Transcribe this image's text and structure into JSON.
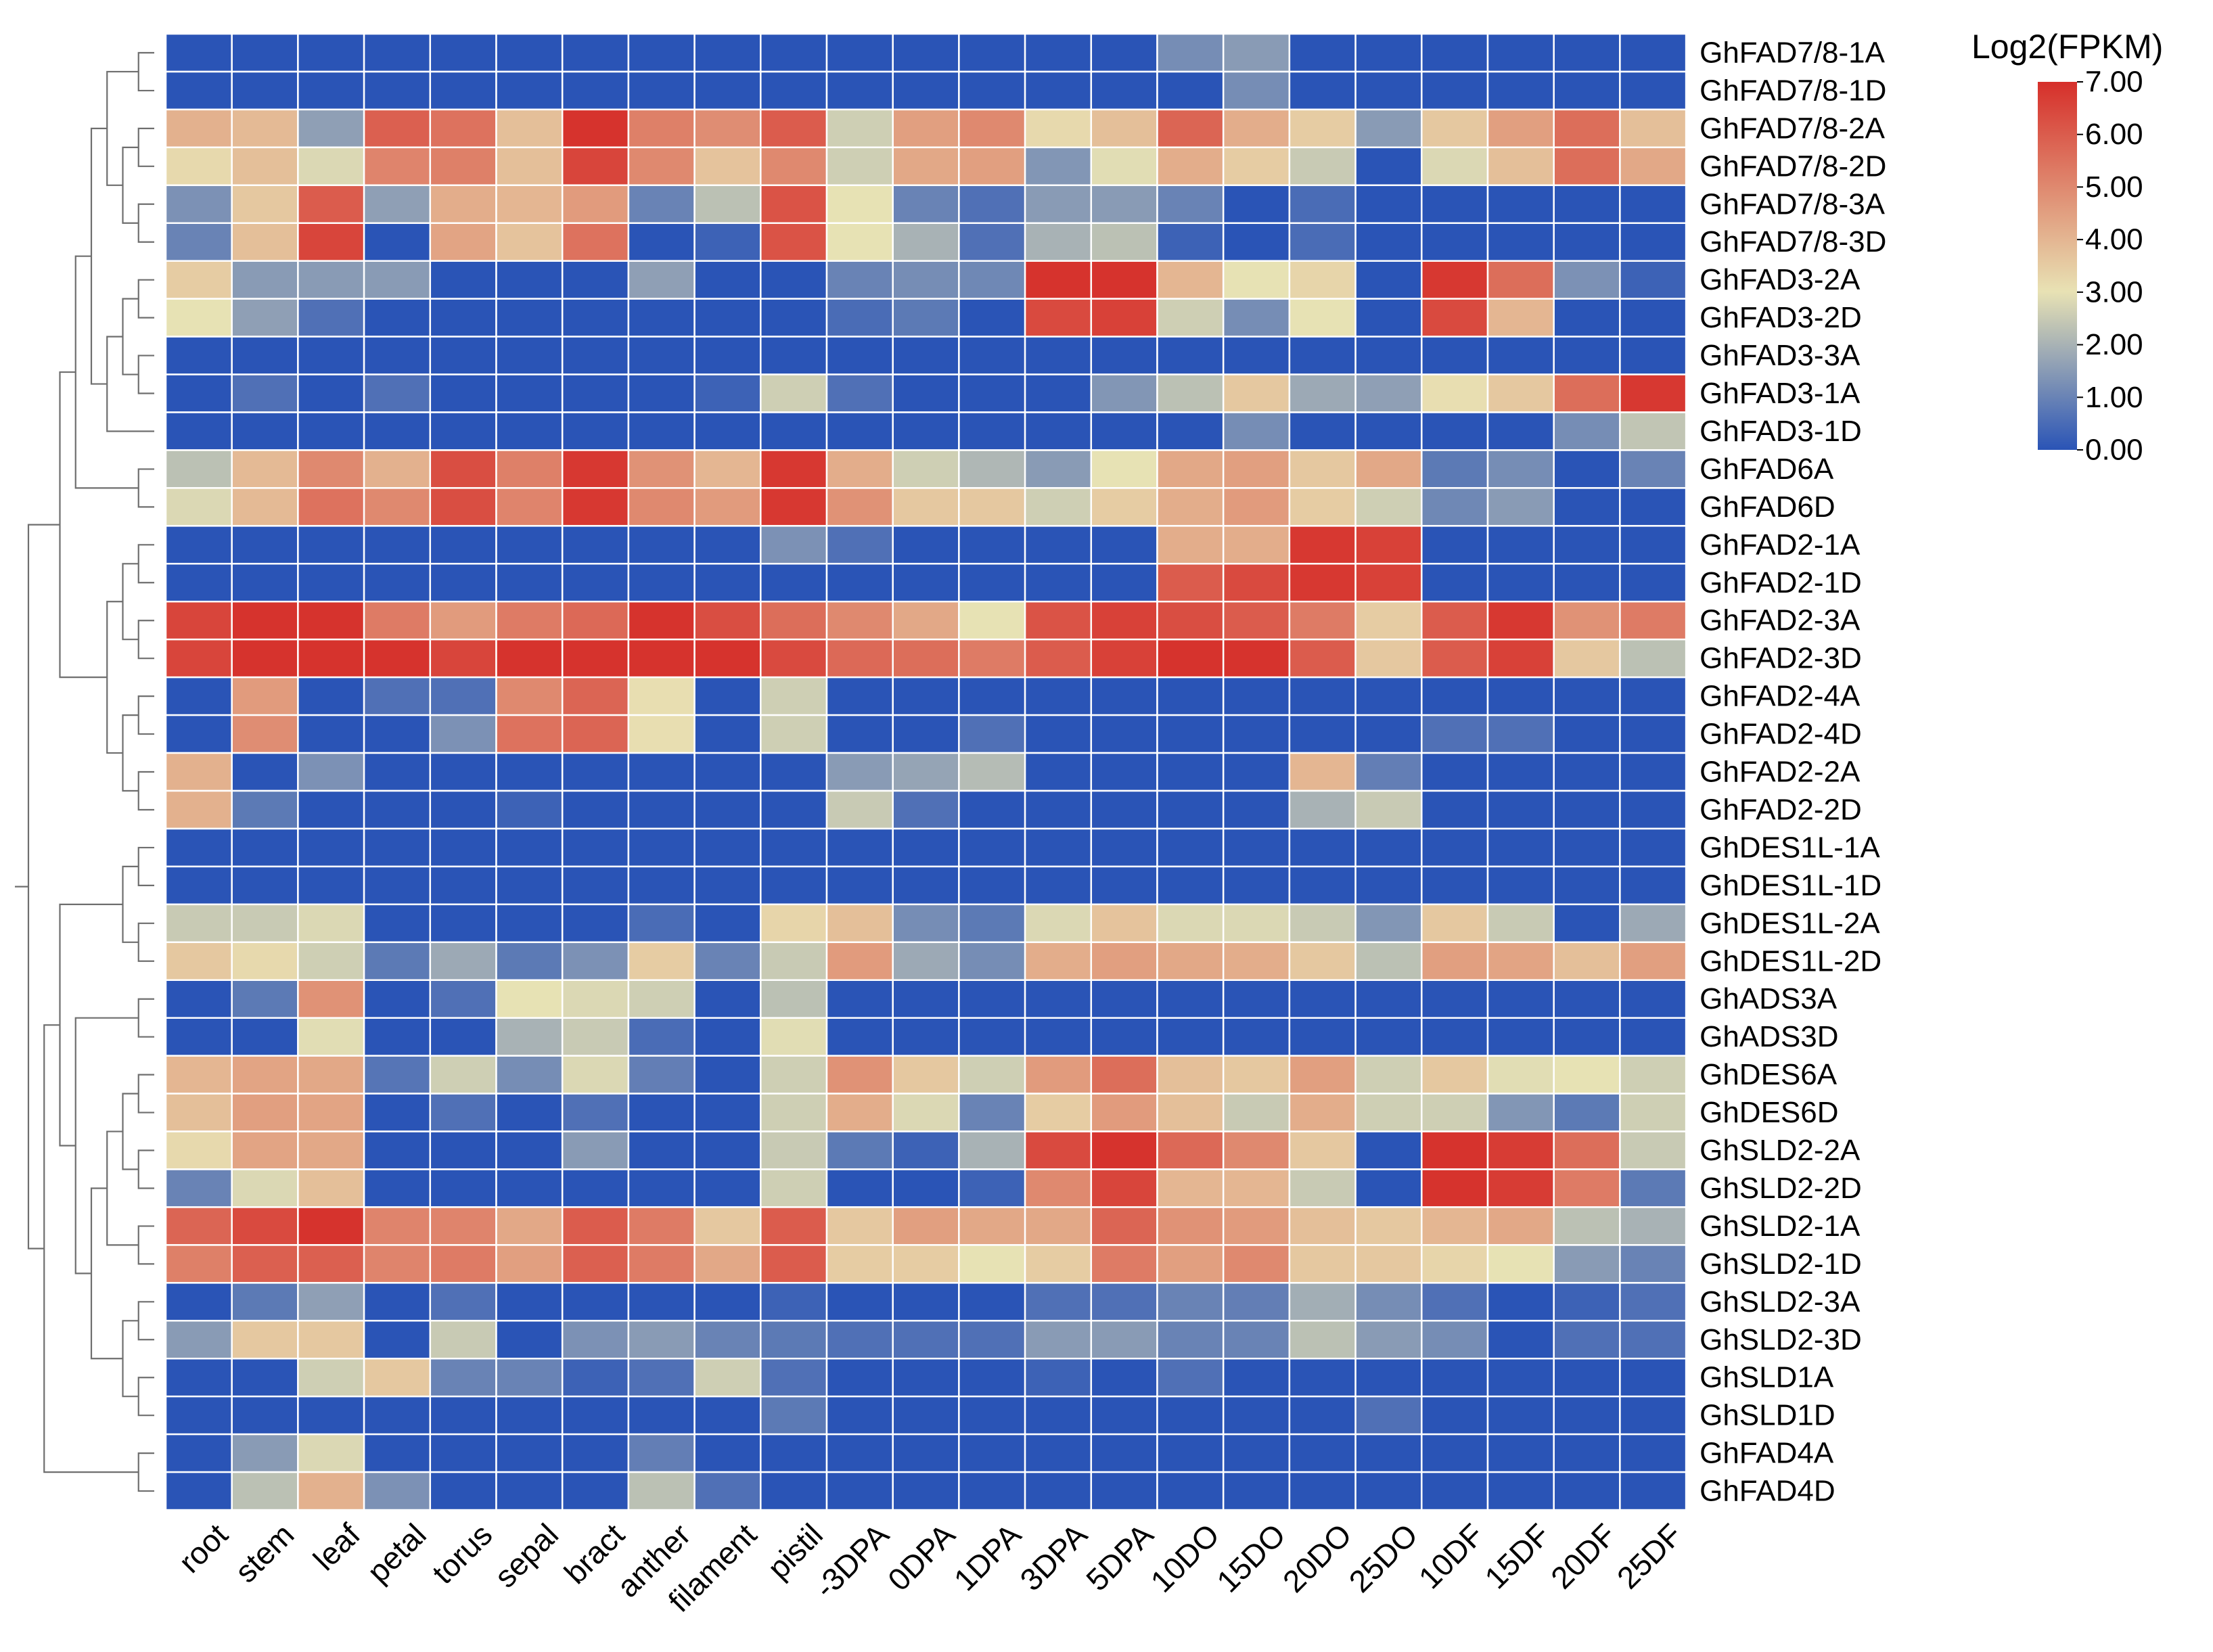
{
  "chart_data": {
    "type": "heatmap",
    "title": "",
    "legend": {
      "title": "Log2(FPKM)",
      "ticks": [
        "7.00",
        "6.00",
        "5.00",
        "4.00",
        "3.00",
        "2.00",
        "1.00",
        "0.00"
      ],
      "range": [
        0,
        7
      ],
      "placement": "top-right",
      "colormap": [
        "#2a54b6",
        "#e8e2b4",
        "#d62f2a"
      ]
    },
    "columns": [
      "root",
      "stem",
      "leaf",
      "petal",
      "torus",
      "sepal",
      "bract",
      "anther",
      "filament",
      "pistil",
      "-3DPA",
      "0DPA",
      "1DPA",
      "3DPA",
      "5DPA",
      "10DO",
      "15DO",
      "20DO",
      "25DO",
      "10DF",
      "15DF",
      "20DF",
      "25DF"
    ],
    "rows": [
      "GhFAD7/8-1A",
      "GhFAD7/8-1D",
      "GhFAD7/8-2A",
      "GhFAD7/8-2D",
      "GhFAD7/8-3A",
      "GhFAD7/8-3D",
      "GhFAD3-2A",
      "GhFAD3-2D",
      "GhFAD3-3A",
      "GhFAD3-1A",
      "GhFAD3-1D",
      "GhFAD6A",
      "GhFAD6D",
      "GhFAD2-1A",
      "GhFAD2-1D",
      "GhFAD2-3A",
      "GhFAD2-3D",
      "GhFAD2-4A",
      "GhFAD2-4D",
      "GhFAD2-2A",
      "GhFAD2-2D",
      "GhDES1L-1A",
      "GhDES1L-1D",
      "GhDES1L-2A",
      "GhDES1L-2D",
      "GhADS3A",
      "GhADS3D",
      "GhDES6A",
      "GhDES6D",
      "GhSLD2-2A",
      "GhSLD2-2D",
      "GhSLD2-1A",
      "GhSLD2-1D",
      "GhSLD2-3A",
      "GhSLD2-3D",
      "GhSLD1A",
      "GhSLD1D",
      "GhFAD4A",
      "GhFAD4D"
    ],
    "values": [
      [
        0,
        0,
        0,
        0,
        0,
        0,
        0,
        0,
        0,
        0,
        0,
        0,
        0,
        0,
        0,
        1.2,
        1.5,
        0,
        0,
        0,
        0,
        0,
        0
      ],
      [
        0,
        0,
        0,
        0,
        0,
        0,
        0,
        0,
        0,
        0,
        0,
        0,
        0,
        0,
        0,
        0,
        1.2,
        0,
        0,
        0,
        0,
        0,
        0
      ],
      [
        4.1,
        3.9,
        1.6,
        5.9,
        5.5,
        3.8,
        6.9,
        5.2,
        4.9,
        6.0,
        2.6,
        4.5,
        5.0,
        3.2,
        3.8,
        5.8,
        4.2,
        3.5,
        1.5,
        3.6,
        4.5,
        5.6,
        3.8
      ],
      [
        3.2,
        3.8,
        2.8,
        5.1,
        5.2,
        3.8,
        6.5,
        5.0,
        3.7,
        5.0,
        2.6,
        4.3,
        4.5,
        1.4,
        2.9,
        4.2,
        3.5,
        2.5,
        0,
        2.8,
        3.8,
        5.6,
        4.3
      ],
      [
        1.3,
        3.6,
        6.0,
        1.6,
        4.2,
        4.0,
        4.6,
        1.0,
        2.3,
        6.2,
        3.0,
        1.0,
        0.6,
        1.5,
        1.5,
        1.0,
        0,
        0.5,
        0,
        0,
        0,
        0,
        0
      ],
      [
        1.0,
        3.8,
        6.5,
        0,
        4.4,
        3.7,
        5.5,
        0,
        0.3,
        6.2,
        3.0,
        2.0,
        0.6,
        2.0,
        2.3,
        0.3,
        0,
        0.5,
        0,
        0,
        0,
        0,
        0
      ],
      [
        3.5,
        1.5,
        1.5,
        1.5,
        0,
        0,
        0,
        1.6,
        0,
        0,
        1.0,
        1.2,
        1.1,
        6.9,
        6.9,
        4.0,
        3.0,
        3.3,
        0,
        6.8,
        5.6,
        1.3,
        0.3
      ],
      [
        3.0,
        1.6,
        0.6,
        0,
        0,
        0,
        0,
        0,
        0,
        0,
        0.5,
        0.8,
        0,
        6.4,
        6.6,
        2.6,
        1.2,
        3.0,
        0,
        6.4,
        4.0,
        0,
        0
      ],
      [
        0,
        0,
        0,
        0,
        0,
        0,
        0,
        0,
        0,
        0,
        0,
        0,
        0,
        0,
        0,
        0,
        0,
        0,
        0,
        0,
        0,
        0,
        0
      ],
      [
        0,
        0.6,
        0,
        0.6,
        0,
        0,
        0,
        0,
        0.3,
        2.6,
        0.6,
        0,
        0,
        0,
        1.4,
        2.3,
        3.6,
        1.8,
        1.6,
        3.1,
        3.6,
        5.6,
        6.8
      ],
      [
        0,
        0,
        0,
        0,
        0,
        0,
        0,
        0,
        0,
        0,
        0,
        0,
        0,
        0,
        0,
        0,
        1.2,
        0,
        0,
        0,
        0,
        1.2,
        2.4
      ],
      [
        2.3,
        3.9,
        5.0,
        4.1,
        6.3,
        5.2,
        6.8,
        4.8,
        4.0,
        6.8,
        4.2,
        2.6,
        2.1,
        1.5,
        3.0,
        4.3,
        4.5,
        3.6,
        4.3,
        0.8,
        1.2,
        0,
        1.0
      ],
      [
        2.8,
        3.9,
        5.5,
        5.0,
        6.3,
        5.1,
        6.8,
        5.0,
        4.6,
        6.8,
        4.8,
        3.6,
        3.6,
        2.6,
        3.5,
        4.2,
        4.6,
        3.5,
        2.6,
        1.1,
        1.5,
        0,
        0
      ],
      [
        0,
        0,
        0,
        0,
        0,
        0,
        0,
        0,
        0,
        1.3,
        0.6,
        0,
        0,
        0,
        0,
        4.2,
        4.2,
        6.8,
        6.6,
        0,
        0,
        0,
        0
      ],
      [
        0,
        0,
        0,
        0,
        0,
        0,
        0,
        0,
        0,
        0,
        0,
        0,
        0,
        0,
        0,
        6.0,
        6.4,
        6.8,
        6.6,
        0,
        0,
        0,
        0
      ],
      [
        6.5,
        6.9,
        6.9,
        5.3,
        4.6,
        5.3,
        5.7,
        6.9,
        6.3,
        5.6,
        5.0,
        4.3,
        3.0,
        6.2,
        6.6,
        6.3,
        6.0,
        5.3,
        3.5,
        6.0,
        6.8,
        4.8,
        5.3
      ],
      [
        6.5,
        6.9,
        6.9,
        6.9,
        6.5,
        6.9,
        6.9,
        6.9,
        6.9,
        6.4,
        5.7,
        5.6,
        5.3,
        6.0,
        6.6,
        6.9,
        6.9,
        6.0,
        3.6,
        6.0,
        6.6,
        3.6,
        2.3
      ],
      [
        0,
        4.6,
        0,
        0.6,
        0.6,
        5.0,
        5.8,
        3.1,
        0,
        2.6,
        0,
        0,
        0,
        0,
        0,
        0,
        0,
        0,
        0,
        0,
        0,
        0,
        0
      ],
      [
        0,
        4.9,
        0,
        0,
        1.3,
        5.5,
        5.8,
        3.1,
        0,
        2.6,
        0,
        0,
        0.6,
        0,
        0,
        0,
        0,
        0,
        0,
        0.6,
        0.6,
        0,
        0
      ],
      [
        4.1,
        0,
        1.3,
        0,
        0,
        0,
        0,
        0,
        0,
        0,
        1.5,
        1.7,
        2.2,
        0,
        0,
        0,
        0,
        4.0,
        0.9,
        0,
        0,
        0,
        0
      ],
      [
        4.1,
        0.8,
        0,
        0,
        0,
        0.3,
        0,
        0,
        0,
        0,
        2.5,
        0.6,
        0,
        0,
        0,
        0,
        0,
        2.0,
        2.5,
        0,
        0,
        0,
        0
      ],
      [
        0,
        0,
        0,
        0,
        0,
        0,
        0,
        0,
        0,
        0,
        0,
        0,
        0,
        0,
        0,
        0,
        0,
        0,
        0,
        0,
        0,
        0,
        0
      ],
      [
        0,
        0,
        0,
        0,
        0,
        0,
        0,
        0,
        0,
        0,
        0,
        0,
        0,
        0,
        0,
        0,
        0,
        0,
        0,
        0,
        0,
        0,
        0
      ],
      [
        2.5,
        2.5,
        2.8,
        0,
        0,
        0,
        0,
        0.5,
        0,
        3.3,
        3.8,
        1.2,
        0.8,
        2.8,
        3.7,
        2.8,
        2.8,
        2.5,
        1.4,
        3.6,
        2.5,
        0,
        1.8
      ],
      [
        3.6,
        3.2,
        2.6,
        0.8,
        1.8,
        0.8,
        1.3,
        3.5,
        1.0,
        2.5,
        4.6,
        1.8,
        1.2,
        4.2,
        4.5,
        4.3,
        4.2,
        3.6,
        2.3,
        4.5,
        4.4,
        3.8,
        4.5
      ],
      [
        0,
        0.8,
        4.8,
        0,
        0.6,
        3.0,
        2.8,
        2.6,
        0,
        2.3,
        0,
        0,
        0,
        0,
        0,
        0,
        0,
        0,
        0,
        0,
        0,
        0,
        0
      ],
      [
        0,
        0,
        2.9,
        0,
        0,
        2.0,
        2.5,
        0.5,
        0,
        2.9,
        0,
        0,
        0,
        0,
        0,
        0,
        0,
        0,
        0,
        0,
        0,
        0,
        0
      ],
      [
        4.0,
        4.4,
        4.3,
        0.7,
        2.6,
        1.2,
        2.8,
        0.9,
        0,
        2.6,
        4.8,
        3.6,
        2.6,
        4.6,
        5.6,
        3.8,
        3.6,
        4.5,
        2.6,
        3.6,
        2.9,
        3.0,
        2.6
      ],
      [
        3.8,
        4.5,
        4.4,
        0,
        0.6,
        0,
        0.6,
        0,
        0,
        2.6,
        4.2,
        2.8,
        1.0,
        3.5,
        4.6,
        3.8,
        2.5,
        4.2,
        2.6,
        2.6,
        1.4,
        0.8,
        2.6
      ],
      [
        3.2,
        4.4,
        4.3,
        0,
        0,
        0,
        1.5,
        0,
        0,
        2.5,
        0.8,
        0.3,
        2.0,
        6.4,
        6.9,
        5.7,
        5.0,
        3.6,
        0,
        6.9,
        6.7,
        5.6,
        2.5
      ],
      [
        1.0,
        2.8,
        3.8,
        0,
        0,
        0,
        0,
        0,
        0,
        2.6,
        0,
        0,
        0.3,
        5.0,
        6.5,
        4.0,
        4.0,
        2.5,
        0,
        6.9,
        6.7,
        5.3,
        0.8
      ],
      [
        5.8,
        6.4,
        6.9,
        5.1,
        5.1,
        4.3,
        6.0,
        5.3,
        3.6,
        6.0,
        3.6,
        4.5,
        4.3,
        4.3,
        5.8,
        4.8,
        4.6,
        3.8,
        3.6,
        4.0,
        4.3,
        2.3,
        2.0
      ],
      [
        5.2,
        5.9,
        5.9,
        5.1,
        5.3,
        4.5,
        5.9,
        5.3,
        4.3,
        6.0,
        3.5,
        3.5,
        3.0,
        3.5,
        5.3,
        4.5,
        5.0,
        3.6,
        3.6,
        3.3,
        3.0,
        1.5,
        1.0
      ],
      [
        0,
        0.8,
        1.6,
        0,
        0.6,
        0,
        0,
        0,
        0,
        0.3,
        0,
        0,
        0,
        0.6,
        0.6,
        1.0,
        0.9,
        1.9,
        1.2,
        0.6,
        0,
        0.3,
        0.6
      ],
      [
        1.5,
        3.6,
        3.6,
        0,
        2.5,
        0,
        1.3,
        1.5,
        1.0,
        0.8,
        0.6,
        0.6,
        0.6,
        1.5,
        1.5,
        1.0,
        1.0,
        2.3,
        1.5,
        1.2,
        0,
        0.6,
        0.6
      ],
      [
        0,
        0,
        2.6,
        3.6,
        1.0,
        1.0,
        0.3,
        0.6,
        2.6,
        0.6,
        0,
        0,
        0,
        0.3,
        0,
        0.6,
        0,
        0,
        0,
        0,
        0,
        0,
        0
      ],
      [
        0,
        0,
        0,
        0,
        0,
        0,
        0,
        0,
        0,
        0.8,
        0,
        0,
        0,
        0,
        0,
        0,
        0,
        0,
        0.6,
        0,
        0,
        0,
        0
      ],
      [
        0,
        1.5,
        2.8,
        0,
        0,
        0,
        0,
        0.9,
        0,
        0,
        0,
        0,
        0,
        0,
        0,
        0,
        0,
        0,
        0,
        0,
        0,
        0,
        0
      ],
      [
        0,
        2.3,
        4.1,
        1.3,
        0,
        0,
        0,
        2.3,
        0.6,
        0,
        0,
        0,
        0,
        0,
        0,
        0,
        0,
        0,
        0,
        0,
        0,
        0,
        0
      ]
    ],
    "row_dendrogram": [
      [
        0,
        1
      ],
      [
        2,
        3
      ],
      [
        4,
        5
      ],
      [
        -2,
        -3
      ],
      [
        -1,
        -4
      ],
      [
        6,
        7
      ],
      [
        8,
        9
      ],
      [
        -6,
        -7
      ],
      [
        -8,
        10
      ],
      [
        11,
        12
      ],
      [
        -5,
        -9
      ],
      [
        -11,
        -10
      ],
      [
        13,
        14
      ],
      [
        15,
        16
      ],
      [
        -13,
        -14
      ],
      [
        17,
        18
      ],
      [
        19,
        20
      ],
      [
        -16,
        -17
      ],
      [
        -15,
        -18
      ],
      [
        -12,
        -19
      ],
      [
        21,
        22
      ],
      [
        23,
        24
      ],
      [
        -21,
        -22
      ],
      [
        25,
        26
      ],
      [
        27,
        28
      ],
      [
        29,
        30
      ],
      [
        -25,
        -26
      ],
      [
        31,
        32
      ],
      [
        -27,
        -28
      ],
      [
        33,
        34
      ],
      [
        35,
        36
      ],
      [
        -30,
        -31
      ],
      [
        -29,
        -32
      ],
      [
        -24,
        -33
      ],
      [
        -23,
        -34
      ],
      [
        37,
        38
      ],
      [
        -35,
        -36
      ],
      [
        -20,
        -37
      ]
    ]
  }
}
